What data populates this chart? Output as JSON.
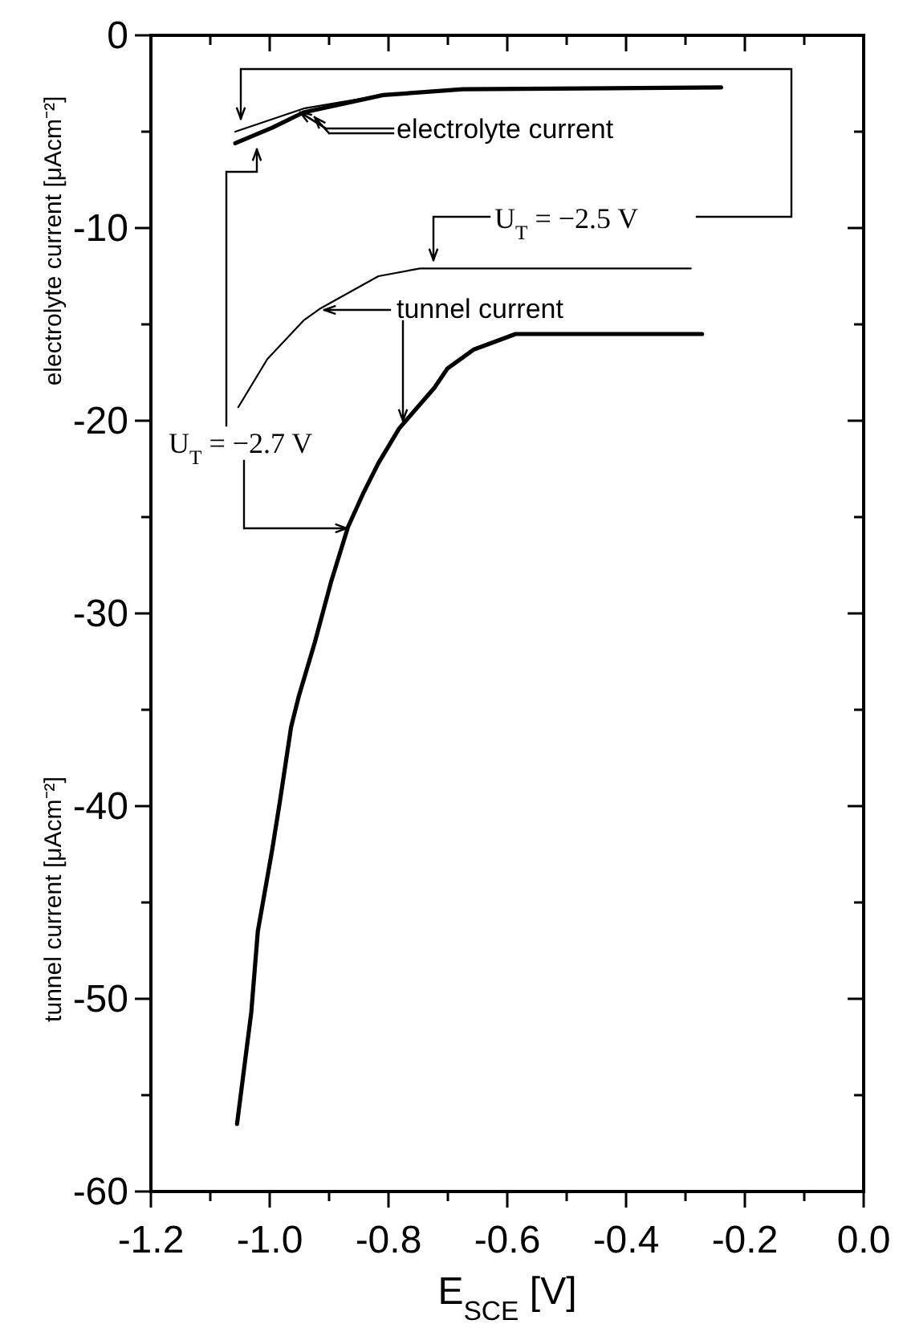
{
  "chart_data": {
    "type": "line",
    "xlabel": "E$_{SCE}$ [V]",
    "ylabel": "electrolyte current [μAcm⁻²]",
    "xlim": [
      -1.2,
      0.0
    ],
    "ylim": [
      -60,
      0
    ],
    "xticks": [
      -1.2,
      {
        "value": -1.1,
        "label": null
      },
      {
        "value": -1.0,
        "label": "-1.0"
      },
      {
        "value": -0.9,
        "label": null
      },
      -0.8,
      {
        "value": -0.7,
        "label": null
      },
      -0.6,
      {
        "value": -0.5,
        "label": null
      },
      -0.4,
      {
        "value": -0.3,
        "label": null
      },
      -0.2,
      {
        "value": -0.1,
        "label": null
      },
      {
        "value": 0.0,
        "label": "0.0"
      }
    ],
    "yticks": [
      -60,
      {
        "value": -55,
        "label": null
      },
      -50,
      {
        "value": -45,
        "label": null
      },
      -40,
      {
        "value": -35,
        "label": null
      },
      -30,
      {
        "value": -25,
        "label": null
      },
      -20,
      {
        "value": -15,
        "label": null
      },
      -10,
      {
        "value": -5,
        "label": null
      },
      0
    ],
    "grid": false,
    "marker": "none",
    "line_style": "solid",
    "series": [
      {
        "color": "#000000",
        "x": [
          -1.058,
          -0.943,
          -0.809,
          -0.675,
          -0.24
        ],
        "values": [
          -5.0,
          -3.8,
          -3.1,
          -2.8,
          -2.7
        ]
      },
      {
        "color": "#000000",
        "x": [
          -1.058,
          -0.996,
          -0.943,
          -0.809,
          -0.675,
          -0.24
        ],
        "values": [
          -5.6,
          -4.8,
          -4.0,
          -3.1,
          -2.8,
          -2.7
        ]
      },
      {
        "color": "#000000",
        "x": [
          -1.053,
          -1.004,
          -0.943,
          -0.916,
          -0.817,
          -0.747,
          -0.291
        ],
        "values": [
          -19.3,
          -16.8,
          -14.8,
          -14.2,
          -12.5,
          -12.1,
          -12.1
        ]
      },
      {
        "color": "#000000",
        "x": [
          -1.055,
          -1.031,
          -1.02,
          -0.996,
          -0.983,
          -0.964,
          -0.951,
          -0.924,
          -0.897,
          -0.868,
          -0.843,
          -0.817,
          -0.782,
          -0.723,
          -0.701,
          -0.656,
          -0.586,
          -0.272
        ],
        "values": [
          -56.5,
          -50.7,
          -46.5,
          -42.3,
          -39.8,
          -35.9,
          -34.3,
          -31.5,
          -28.4,
          -25.5,
          -23.8,
          -22.2,
          -20.4,
          -18.3,
          -17.3,
          -16.3,
          -15.5,
          -15.5
        ]
      }
    ],
    "annotations": [
      "electrolyte current",
      "tunnel current",
      "U$_{T}$ = −2.5 V",
      "U$_{T}$ = −2.7 V",
      "tunnel current [μAcm⁻²]"
    ]
  }
}
